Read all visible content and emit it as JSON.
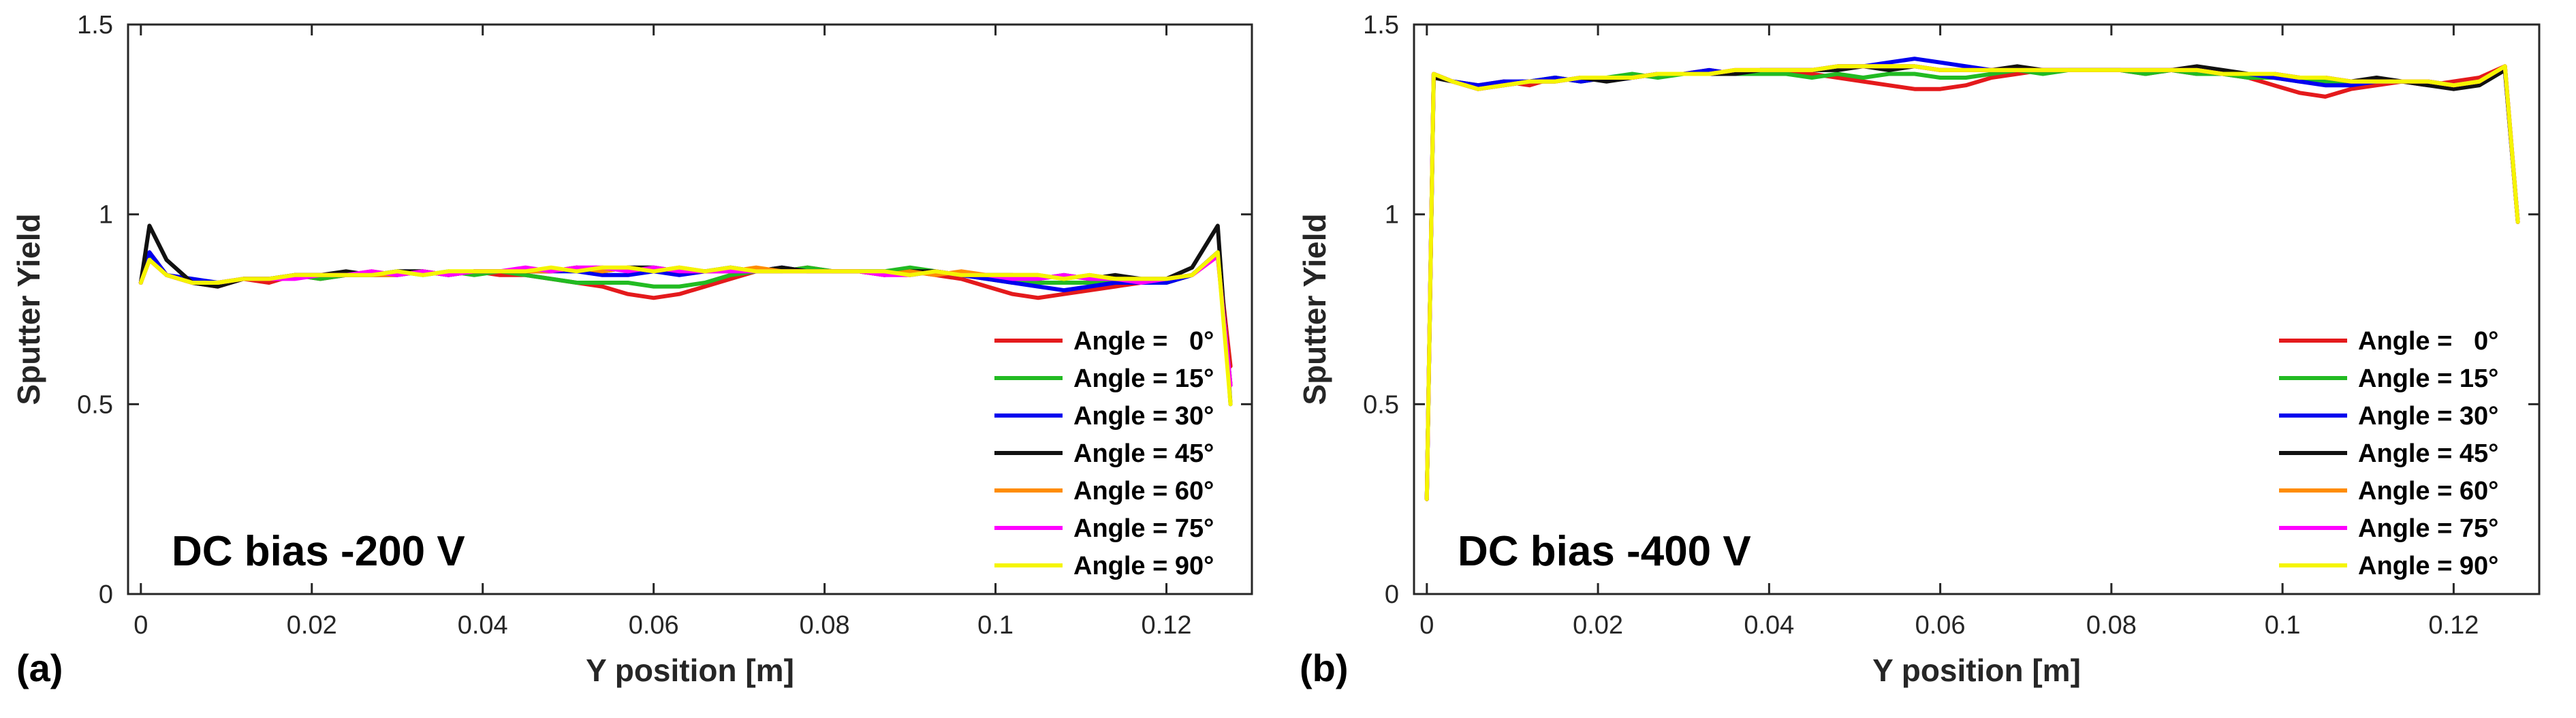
{
  "figure": {
    "panel_labels": [
      "(a)",
      "(b)"
    ]
  },
  "chart_data": [
    {
      "type": "line",
      "panel_label": "(a)",
      "annotation": "DC bias -200 V",
      "xlabel": "Y position [m]",
      "ylabel": "Sputter Yield",
      "xlim": [
        -0.0015,
        0.13
      ],
      "ylim": [
        0,
        1.5
      ],
      "xticks": [
        0,
        0.02,
        0.04,
        0.06,
        0.08,
        0.1,
        0.12
      ],
      "xtick_labels": [
        "0",
        "0.02",
        "0.04",
        "0.06",
        "0.08",
        "0.1",
        "0.12"
      ],
      "yticks": [
        0,
        0.5,
        1,
        1.5
      ],
      "ytick_labels": [
        "0",
        "0.5",
        "1",
        "1.5"
      ],
      "legend_location": "lower-right",
      "x": [
        0,
        0.001,
        0.003,
        0.006,
        0.009,
        0.012,
        0.015,
        0.018,
        0.021,
        0.024,
        0.027,
        0.03,
        0.033,
        0.036,
        0.039,
        0.042,
        0.045,
        0.048,
        0.051,
        0.054,
        0.057,
        0.06,
        0.063,
        0.066,
        0.069,
        0.072,
        0.075,
        0.078,
        0.081,
        0.084,
        0.087,
        0.09,
        0.093,
        0.096,
        0.099,
        0.102,
        0.105,
        0.108,
        0.111,
        0.114,
        0.117,
        0.12,
        0.123,
        0.126,
        0.1275
      ],
      "series": [
        {
          "name": "Angle =   0°",
          "color": "#e41a1c",
          "values": [
            0.82,
            0.9,
            0.84,
            0.82,
            0.81,
            0.83,
            0.82,
            0.84,
            0.83,
            0.84,
            0.85,
            0.84,
            0.85,
            0.84,
            0.85,
            0.84,
            0.84,
            0.83,
            0.82,
            0.81,
            0.79,
            0.78,
            0.79,
            0.81,
            0.83,
            0.85,
            0.85,
            0.86,
            0.85,
            0.85,
            0.84,
            0.85,
            0.84,
            0.83,
            0.81,
            0.79,
            0.78,
            0.79,
            0.8,
            0.81,
            0.82,
            0.82,
            0.84,
            0.9,
            0.6
          ]
        },
        {
          "name": "Angle = 15°",
          "color": "#22bb22",
          "values": [
            0.82,
            0.89,
            0.84,
            0.82,
            0.82,
            0.83,
            0.83,
            0.84,
            0.83,
            0.84,
            0.84,
            0.85,
            0.84,
            0.85,
            0.84,
            0.85,
            0.84,
            0.83,
            0.82,
            0.82,
            0.82,
            0.81,
            0.81,
            0.82,
            0.84,
            0.85,
            0.85,
            0.86,
            0.85,
            0.85,
            0.85,
            0.86,
            0.85,
            0.84,
            0.83,
            0.82,
            0.82,
            0.82,
            0.82,
            0.82,
            0.83,
            0.82,
            0.84,
            0.9,
            0.55
          ]
        },
        {
          "name": "Angle = 30°",
          "color": "#0000ee",
          "values": [
            0.82,
            0.9,
            0.84,
            0.83,
            0.82,
            0.83,
            0.83,
            0.84,
            0.84,
            0.84,
            0.84,
            0.84,
            0.85,
            0.84,
            0.85,
            0.85,
            0.85,
            0.85,
            0.85,
            0.84,
            0.84,
            0.85,
            0.84,
            0.85,
            0.85,
            0.85,
            0.86,
            0.85,
            0.85,
            0.85,
            0.85,
            0.84,
            0.85,
            0.84,
            0.83,
            0.82,
            0.81,
            0.8,
            0.81,
            0.82,
            0.82,
            0.82,
            0.84,
            0.9,
            0.55
          ]
        },
        {
          "name": "Angle = 45°",
          "color": "#111111",
          "values": [
            0.82,
            0.97,
            0.88,
            0.82,
            0.81,
            0.83,
            0.83,
            0.84,
            0.84,
            0.85,
            0.84,
            0.85,
            0.85,
            0.84,
            0.85,
            0.85,
            0.85,
            0.85,
            0.86,
            0.85,
            0.86,
            0.86,
            0.85,
            0.85,
            0.86,
            0.85,
            0.86,
            0.85,
            0.85,
            0.85,
            0.84,
            0.85,
            0.85,
            0.84,
            0.84,
            0.84,
            0.83,
            0.84,
            0.83,
            0.84,
            0.83,
            0.83,
            0.86,
            0.97,
            0.5
          ]
        },
        {
          "name": "Angle = 60°",
          "color": "#ff8c00",
          "values": [
            0.82,
            0.88,
            0.84,
            0.82,
            0.82,
            0.83,
            0.83,
            0.84,
            0.84,
            0.84,
            0.84,
            0.84,
            0.85,
            0.84,
            0.85,
            0.85,
            0.85,
            0.85,
            0.86,
            0.85,
            0.86,
            0.85,
            0.86,
            0.85,
            0.85,
            0.86,
            0.85,
            0.85,
            0.85,
            0.85,
            0.84,
            0.85,
            0.84,
            0.85,
            0.84,
            0.84,
            0.84,
            0.83,
            0.84,
            0.83,
            0.83,
            0.83,
            0.84,
            0.89,
            0.55
          ]
        },
        {
          "name": "Angle = 75°",
          "color": "#ff00ff",
          "values": [
            0.82,
            0.88,
            0.84,
            0.82,
            0.82,
            0.83,
            0.83,
            0.83,
            0.84,
            0.84,
            0.85,
            0.84,
            0.85,
            0.84,
            0.85,
            0.85,
            0.86,
            0.85,
            0.86,
            0.86,
            0.85,
            0.86,
            0.85,
            0.85,
            0.85,
            0.85,
            0.85,
            0.85,
            0.85,
            0.85,
            0.84,
            0.84,
            0.85,
            0.84,
            0.84,
            0.83,
            0.83,
            0.84,
            0.83,
            0.83,
            0.82,
            0.83,
            0.84,
            0.89,
            0.55
          ]
        },
        {
          "name": "Angle = 90°",
          "color": "#f5f500",
          "values": [
            0.82,
            0.88,
            0.84,
            0.82,
            0.82,
            0.83,
            0.83,
            0.84,
            0.84,
            0.84,
            0.84,
            0.85,
            0.84,
            0.85,
            0.85,
            0.85,
            0.85,
            0.86,
            0.85,
            0.86,
            0.86,
            0.85,
            0.86,
            0.85,
            0.86,
            0.85,
            0.85,
            0.85,
            0.85,
            0.85,
            0.85,
            0.84,
            0.85,
            0.84,
            0.84,
            0.84,
            0.84,
            0.83,
            0.84,
            0.83,
            0.83,
            0.83,
            0.84,
            0.9,
            0.5
          ]
        }
      ]
    },
    {
      "type": "line",
      "panel_label": "(b)",
      "annotation": "DC bias -400 V",
      "xlabel": "Y position [m]",
      "ylabel": "Sputter Yield",
      "xlim": [
        -0.0015,
        0.13
      ],
      "ylim": [
        0,
        1.5
      ],
      "xticks": [
        0,
        0.02,
        0.04,
        0.06,
        0.08,
        0.1,
        0.12
      ],
      "xtick_labels": [
        "0",
        "0.02",
        "0.04",
        "0.06",
        "0.08",
        "0.1",
        "0.12"
      ],
      "yticks": [
        0,
        0.5,
        1,
        1.5
      ],
      "ytick_labels": [
        "0",
        "0.5",
        "1",
        "1.5"
      ],
      "legend_location": "lower-right",
      "x": [
        0,
        0.0008,
        0.003,
        0.006,
        0.009,
        0.012,
        0.015,
        0.018,
        0.021,
        0.024,
        0.027,
        0.03,
        0.033,
        0.036,
        0.039,
        0.042,
        0.045,
        0.048,
        0.051,
        0.054,
        0.057,
        0.06,
        0.063,
        0.066,
        0.069,
        0.072,
        0.075,
        0.078,
        0.081,
        0.084,
        0.087,
        0.09,
        0.093,
        0.096,
        0.099,
        0.102,
        0.105,
        0.108,
        0.111,
        0.114,
        0.117,
        0.12,
        0.123,
        0.126,
        0.1275
      ],
      "series": [
        {
          "name": "Angle =   0°",
          "color": "#e41a1c",
          "values": [
            0.25,
            1.37,
            1.35,
            1.34,
            1.35,
            1.34,
            1.36,
            1.35,
            1.36,
            1.36,
            1.37,
            1.37,
            1.38,
            1.37,
            1.38,
            1.37,
            1.37,
            1.36,
            1.35,
            1.34,
            1.33,
            1.33,
            1.34,
            1.36,
            1.37,
            1.38,
            1.38,
            1.38,
            1.38,
            1.37,
            1.38,
            1.37,
            1.37,
            1.36,
            1.34,
            1.32,
            1.31,
            1.33,
            1.34,
            1.35,
            1.34,
            1.35,
            1.36,
            1.39,
            0.98
          ]
        },
        {
          "name": "Angle = 15°",
          "color": "#22bb22",
          "values": [
            0.25,
            1.37,
            1.35,
            1.34,
            1.34,
            1.35,
            1.36,
            1.35,
            1.36,
            1.37,
            1.36,
            1.37,
            1.37,
            1.37,
            1.37,
            1.37,
            1.36,
            1.37,
            1.36,
            1.37,
            1.37,
            1.36,
            1.36,
            1.37,
            1.38,
            1.37,
            1.38,
            1.38,
            1.38,
            1.37,
            1.38,
            1.37,
            1.37,
            1.36,
            1.36,
            1.35,
            1.35,
            1.35,
            1.35,
            1.35,
            1.35,
            1.34,
            1.35,
            1.39,
            0.98
          ]
        },
        {
          "name": "Angle = 30°",
          "color": "#0000ee",
          "values": [
            0.25,
            1.37,
            1.35,
            1.34,
            1.35,
            1.35,
            1.36,
            1.35,
            1.36,
            1.36,
            1.37,
            1.37,
            1.38,
            1.37,
            1.38,
            1.38,
            1.38,
            1.39,
            1.39,
            1.4,
            1.41,
            1.4,
            1.39,
            1.38,
            1.38,
            1.38,
            1.38,
            1.38,
            1.38,
            1.38,
            1.38,
            1.38,
            1.37,
            1.37,
            1.36,
            1.35,
            1.34,
            1.34,
            1.35,
            1.35,
            1.35,
            1.34,
            1.35,
            1.38,
            0.98
          ]
        },
        {
          "name": "Angle = 45°",
          "color": "#111111",
          "values": [
            0.25,
            1.36,
            1.35,
            1.33,
            1.34,
            1.35,
            1.35,
            1.36,
            1.35,
            1.36,
            1.37,
            1.37,
            1.37,
            1.37,
            1.38,
            1.38,
            1.38,
            1.38,
            1.39,
            1.38,
            1.39,
            1.38,
            1.38,
            1.38,
            1.39,
            1.38,
            1.38,
            1.38,
            1.38,
            1.38,
            1.38,
            1.39,
            1.38,
            1.37,
            1.37,
            1.36,
            1.36,
            1.35,
            1.36,
            1.35,
            1.34,
            1.33,
            1.34,
            1.38,
            0.98
          ]
        },
        {
          "name": "Angle = 60°",
          "color": "#ff8c00",
          "values": [
            0.25,
            1.37,
            1.35,
            1.33,
            1.34,
            1.35,
            1.35,
            1.36,
            1.36,
            1.36,
            1.37,
            1.37,
            1.37,
            1.38,
            1.38,
            1.38,
            1.38,
            1.39,
            1.39,
            1.39,
            1.39,
            1.38,
            1.38,
            1.38,
            1.38,
            1.38,
            1.38,
            1.38,
            1.38,
            1.38,
            1.38,
            1.38,
            1.37,
            1.37,
            1.37,
            1.36,
            1.36,
            1.35,
            1.35,
            1.35,
            1.35,
            1.34,
            1.35,
            1.39,
            0.98
          ]
        },
        {
          "name": "Angle = 75°",
          "color": "#ff00ff",
          "values": [
            0.25,
            1.37,
            1.35,
            1.33,
            1.34,
            1.35,
            1.35,
            1.36,
            1.36,
            1.36,
            1.37,
            1.37,
            1.37,
            1.38,
            1.38,
            1.38,
            1.38,
            1.39,
            1.39,
            1.39,
            1.39,
            1.38,
            1.38,
            1.38,
            1.38,
            1.38,
            1.38,
            1.38,
            1.38,
            1.38,
            1.38,
            1.38,
            1.37,
            1.37,
            1.37,
            1.36,
            1.36,
            1.35,
            1.35,
            1.35,
            1.35,
            1.34,
            1.35,
            1.39,
            0.98
          ]
        },
        {
          "name": "Angle = 90°",
          "color": "#f5f500",
          "values": [
            0.25,
            1.37,
            1.35,
            1.33,
            1.34,
            1.35,
            1.35,
            1.36,
            1.36,
            1.36,
            1.37,
            1.37,
            1.37,
            1.38,
            1.38,
            1.38,
            1.38,
            1.39,
            1.39,
            1.39,
            1.39,
            1.38,
            1.38,
            1.38,
            1.38,
            1.38,
            1.38,
            1.38,
            1.38,
            1.38,
            1.38,
            1.38,
            1.37,
            1.37,
            1.37,
            1.36,
            1.36,
            1.35,
            1.35,
            1.35,
            1.35,
            1.34,
            1.35,
            1.39,
            0.98
          ]
        }
      ]
    }
  ]
}
